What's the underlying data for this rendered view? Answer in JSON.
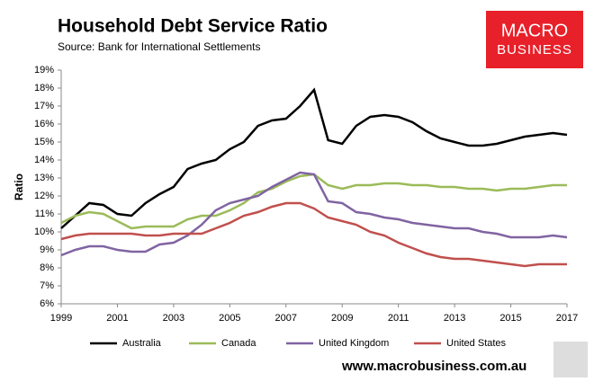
{
  "chart_data": {
    "type": "line",
    "title": "Household Debt Service Ratio",
    "subtitle": "Source: Bank for International Settlements",
    "y_label": "Ratio",
    "logo": [
      "MACRO",
      "BUSINESS"
    ],
    "footer": "www.macrobusiness.com.au",
    "x": [
      1999,
      1999.5,
      2000,
      2000.5,
      2001,
      2001.5,
      2002,
      2002.5,
      2003,
      2003.5,
      2004,
      2004.5,
      2005,
      2005.5,
      2006,
      2006.5,
      2007,
      2007.5,
      2008,
      2008.5,
      2009,
      2009.5,
      2010,
      2010.5,
      2011,
      2011.5,
      2012,
      2012.5,
      2013,
      2013.5,
      2014,
      2014.5,
      2015,
      2015.5,
      2016,
      2016.5,
      2017
    ],
    "series": [
      {
        "name": "Australia",
        "color": "#000000",
        "values": [
          10.2,
          10.9,
          11.6,
          11.5,
          11.0,
          10.9,
          11.6,
          12.1,
          12.5,
          13.5,
          13.8,
          14.0,
          14.6,
          15.0,
          15.9,
          16.2,
          16.3,
          17.0,
          17.9,
          15.1,
          14.9,
          15.9,
          16.4,
          16.5,
          16.4,
          16.1,
          15.6,
          15.2,
          15.0,
          14.8,
          14.8,
          14.9,
          15.1,
          15.3,
          15.4,
          15.5,
          15.4
        ]
      },
      {
        "name": "Canada",
        "color": "#9bbb59",
        "values": [
          10.5,
          10.9,
          11.1,
          11.0,
          10.6,
          10.2,
          10.3,
          10.3,
          10.3,
          10.7,
          10.9,
          10.9,
          11.2,
          11.6,
          12.2,
          12.4,
          12.8,
          13.1,
          13.2,
          12.6,
          12.4,
          12.6,
          12.6,
          12.7,
          12.7,
          12.6,
          12.6,
          12.5,
          12.5,
          12.4,
          12.4,
          12.3,
          12.4,
          12.4,
          12.5,
          12.6,
          12.6
        ]
      },
      {
        "name": "United Kingdom",
        "color": "#8064a2",
        "values": [
          8.7,
          9.0,
          9.2,
          9.2,
          9.0,
          8.9,
          8.9,
          9.3,
          9.4,
          9.8,
          10.4,
          11.2,
          11.6,
          11.8,
          12.0,
          12.5,
          12.9,
          13.3,
          13.2,
          11.7,
          11.6,
          11.1,
          11.0,
          10.8,
          10.7,
          10.5,
          10.4,
          10.3,
          10.2,
          10.2,
          10.0,
          9.9,
          9.7,
          9.7,
          9.7,
          9.8,
          9.7
        ]
      },
      {
        "name": "United States",
        "color": "#c0504d",
        "values": [
          9.6,
          9.8,
          9.9,
          9.9,
          9.9,
          9.9,
          9.8,
          9.8,
          9.9,
          9.9,
          9.9,
          10.2,
          10.5,
          10.9,
          11.1,
          11.4,
          11.6,
          11.6,
          11.3,
          10.8,
          10.6,
          10.4,
          10.0,
          9.8,
          9.4,
          9.1,
          8.8,
          8.6,
          8.5,
          8.5,
          8.4,
          8.3,
          8.2,
          8.1,
          8.2,
          8.2,
          8.2
        ]
      }
    ],
    "xlim": [
      1999,
      2017
    ],
    "xticks": [
      1999,
      2001,
      2003,
      2005,
      2007,
      2009,
      2011,
      2013,
      2015,
      2017
    ],
    "ylim": [
      6,
      19
    ],
    "yticks": [
      {
        "value": 6,
        "label": "6%"
      },
      {
        "value": 7,
        "label": "7%"
      },
      {
        "value": 8,
        "label": "8%"
      },
      {
        "value": 9,
        "label": "9%"
      },
      {
        "value": 10,
        "label": "10%"
      },
      {
        "value": 11,
        "label": "11%"
      },
      {
        "value": 12,
        "label": "12%"
      },
      {
        "value": 13,
        "label": "13%"
      },
      {
        "value": 14,
        "label": "14%"
      },
      {
        "value": 15,
        "label": "15%"
      },
      {
        "value": 16,
        "label": "16%"
      },
      {
        "value": 17,
        "label": "17%"
      },
      {
        "value": 18,
        "label": "18%"
      },
      {
        "value": 19,
        "label": "19%"
      }
    ],
    "legend": "bottom"
  }
}
